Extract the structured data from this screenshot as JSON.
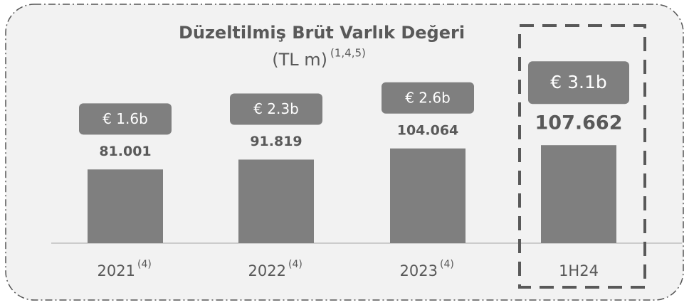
{
  "chart_data": {
    "type": "bar",
    "title": "Düzeltilmiş Brüt Varlık Değeri",
    "subtitle": "(TL m)",
    "subtitle_note": "(1,4,5)",
    "categories": [
      "2021",
      "2022",
      "2023",
      "1H24"
    ],
    "category_notes": [
      "(4)",
      "(4)",
      "(4)",
      null
    ],
    "values": [
      81001,
      91819,
      104064,
      107662
    ],
    "value_labels": [
      "81.001",
      "91.819",
      "104.064",
      "107.662"
    ],
    "euro_labels": [
      "€ 1.6b",
      "€ 2.3b",
      "€ 2.6b",
      "€ 3.1b"
    ],
    "color": "#7f7f7f",
    "ylim": [
      0,
      200000
    ]
  }
}
